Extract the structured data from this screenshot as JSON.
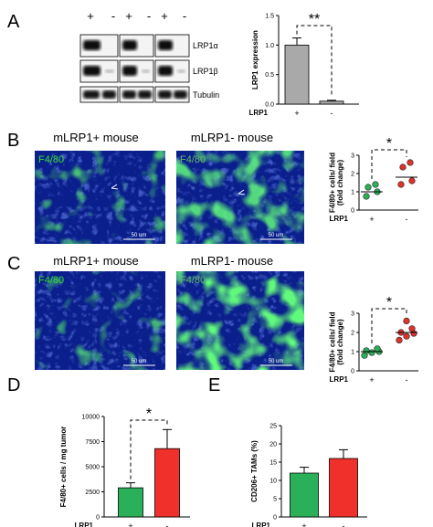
{
  "panel_labels": [
    "A",
    "B",
    "C",
    "D",
    "E"
  ],
  "western_blot": {
    "lanes": [
      "+",
      "-",
      "+",
      "-",
      "+",
      "-"
    ],
    "bands": [
      "LRP1α",
      "LRP1β",
      "Tubulin"
    ]
  },
  "micrographs": {
    "rows": [
      {
        "titles": [
          "mLRP1+ mouse",
          "mLRP1- mouse"
        ],
        "stain": "F4/80",
        "scale": "50 um"
      },
      {
        "titles": [
          "mLRP1+ mouse",
          "mLRP1- mouse"
        ],
        "stain": "F4/80",
        "scale": "50 um"
      }
    ]
  },
  "group_axis_label": "LRP1",
  "significance": {
    "A": "**",
    "B": "*",
    "C": "*",
    "D": "*"
  },
  "chart_data": [
    {
      "id": "A",
      "type": "bar",
      "categories": [
        "+",
        "-"
      ],
      "values": [
        1.0,
        0.05
      ],
      "errors": [
        0.12,
        0.015
      ],
      "colors": [
        "#a9a9a9",
        "#a9a9a9"
      ],
      "ylabel": "LRP1 expression",
      "xlabel": "LRP1",
      "ylim": [
        0,
        1.5
      ],
      "yticks": [
        "0.0",
        "0.5",
        "1.0",
        "1.5"
      ],
      "annotation": "**"
    },
    {
      "id": "B",
      "type": "scatter",
      "categories": [
        "+",
        "-"
      ],
      "points": [
        [
          0.75,
          1.0,
          1.25,
          1.4
        ],
        [
          1.4,
          1.6,
          2.35,
          2.6
        ]
      ],
      "means": [
        1.0,
        1.8
      ],
      "colors": [
        "#2bb05a",
        "#e0322a"
      ],
      "ylabel": "F4/80+ cells/ field (fold change)",
      "xlabel": "LRP1",
      "ylim": [
        0,
        3
      ],
      "yticks": [
        "0",
        "1",
        "2",
        "3"
      ],
      "annotation": "*"
    },
    {
      "id": "C",
      "type": "scatter",
      "categories": [
        "+",
        "-"
      ],
      "points": [
        [
          0.8,
          0.95,
          1.0,
          1.05,
          1.15
        ],
        [
          1.6,
          1.8,
          1.95,
          2.0,
          2.2,
          2.6
        ]
      ],
      "means": [
        1.0,
        2.0
      ],
      "colors": [
        "#2bb05a",
        "#e0322a"
      ],
      "ylabel": "F4/80+ cells/ field (fold change)",
      "xlabel": "LRP1",
      "ylim": [
        0,
        3
      ],
      "yticks": [
        "0",
        "1",
        "2",
        "3"
      ],
      "annotation": "*"
    },
    {
      "id": "D",
      "type": "bar",
      "categories": [
        "+",
        "-"
      ],
      "values": [
        2900,
        6800
      ],
      "errors": [
        500,
        1900
      ],
      "colors": [
        "#2bb05a",
        "#f0302a"
      ],
      "ylabel": "F4/80+ cells / mg tumor",
      "xlabel": "LRP1",
      "ylim": [
        0,
        10000
      ],
      "yticks": [
        "0",
        "2500",
        "5000",
        "7500",
        "10000"
      ],
      "annotation": "*"
    },
    {
      "id": "E",
      "type": "bar",
      "categories": [
        "+",
        "-"
      ],
      "values": [
        12,
        16
      ],
      "errors": [
        1.6,
        2.4
      ],
      "colors": [
        "#2bb05a",
        "#f0302a"
      ],
      "ylabel": "CD206+ TAMs (%)",
      "xlabel": "LRP1",
      "ylim": [
        0,
        25
      ],
      "yticks": [
        "0",
        "5",
        "10",
        "15",
        "20",
        "25"
      ],
      "annotation": ""
    }
  ]
}
